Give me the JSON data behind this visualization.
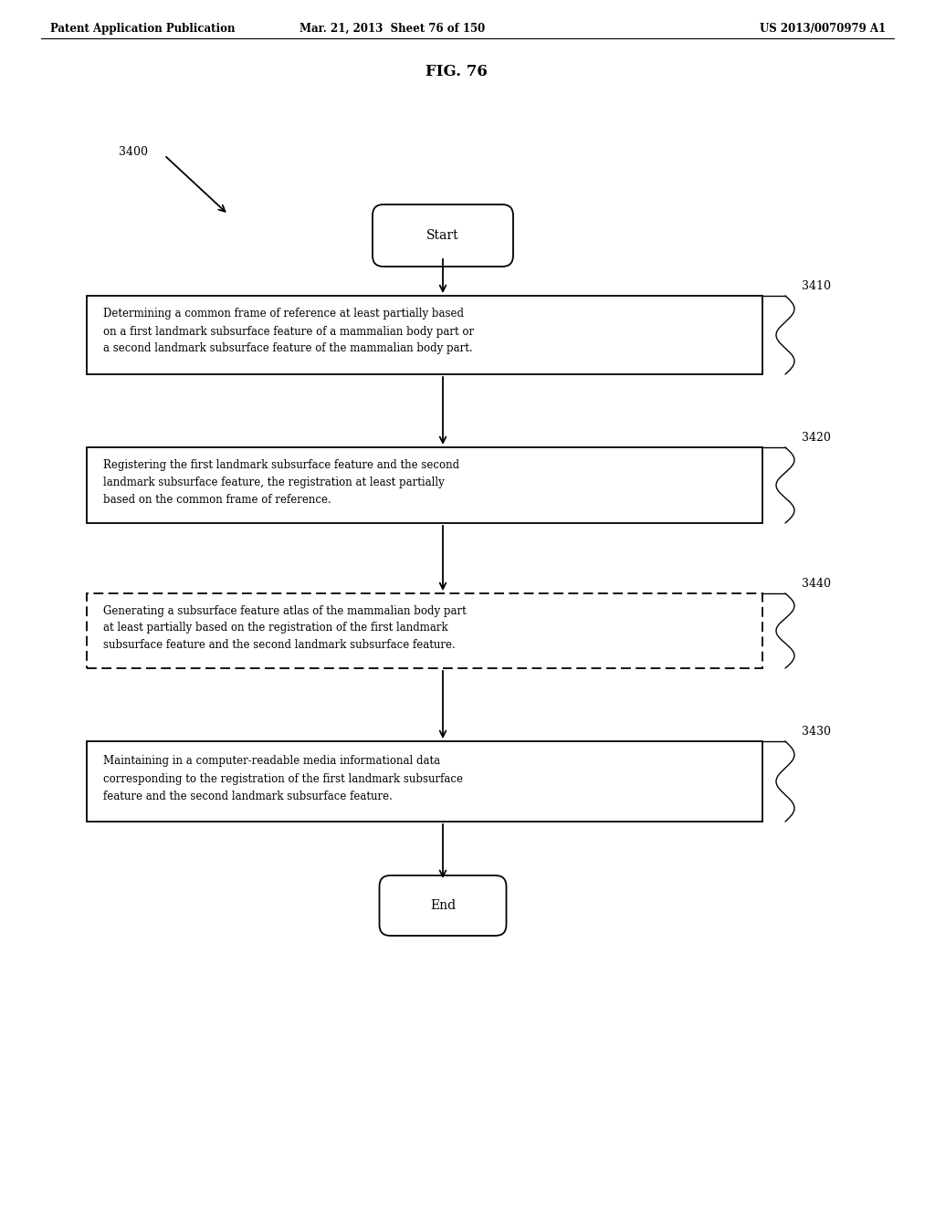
{
  "fig_width": 10.24,
  "fig_height": 13.2,
  "dpi": 100,
  "bg_color": "#ffffff",
  "header_left": "Patent Application Publication",
  "header_mid": "Mar. 21, 2013  Sheet 76 of 150",
  "header_right": "US 2013/0070979 A1",
  "fig_label": "FIG. 76",
  "diagram_label": "3400",
  "start_text": "Start",
  "end_text": "End",
  "box1_text": "Determining a common frame of reference at least partially based\non a first landmark subsurface feature of a mammalian body part or\na second landmark subsurface feature of the mammalian body part.",
  "box2_text": "Registering the first landmark subsurface feature and the second\nlandmark subsurface feature, the registration at least partially\nbased on the common frame of reference.",
  "box3_text": "Generating a subsurface feature atlas of the mammalian body part\nat least partially based on the registration of the first landmark\nsubsurface feature and the second landmark subsurface feature.",
  "box4_text": "Maintaining in a computer-readable media informational data\ncorresponding to the registration of the first landmark subsurface\nfeature and the second landmark subsurface feature.",
  "label_3410": "3410",
  "label_3420": "3420",
  "label_3440": "3440",
  "label_3430": "3430"
}
